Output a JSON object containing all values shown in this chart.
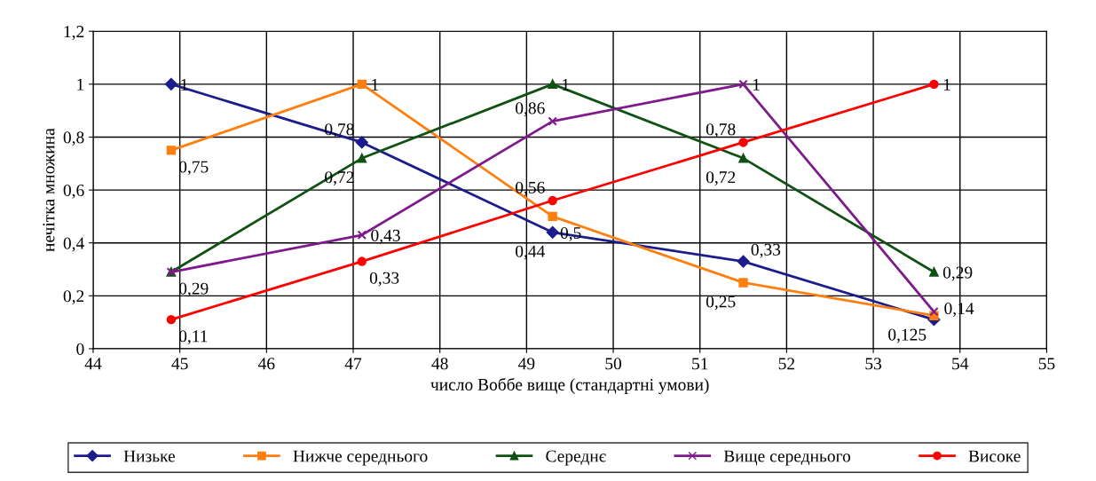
{
  "chart_data": {
    "type": "line",
    "xlabel": "число Воббе вище (стандартні умови)",
    "ylabel": "нечітка множина",
    "x": [
      44.9,
      47.1,
      49.3,
      51.5,
      53.7
    ],
    "xlim": [
      44,
      55
    ],
    "xticks": [
      44,
      45,
      46,
      47,
      48,
      49,
      50,
      51,
      52,
      53,
      54,
      55
    ],
    "ylim": [
      0,
      1.2
    ],
    "yticks": [
      0,
      {
        "value": 0.2,
        "label": "0,2"
      },
      {
        "value": 0.4,
        "label": "0,4"
      },
      {
        "value": 0.6,
        "label": "0,6"
      },
      {
        "value": 0.8,
        "label": "0,8"
      },
      1,
      {
        "value": 1.2,
        "label": "1,2"
      }
    ],
    "grid": true,
    "legend": "bottom",
    "line_style": "solid",
    "series": [
      {
        "name": "Низьке",
        "color": "#1c1c8c",
        "marker": "diamond",
        "values": [
          1,
          0.78,
          0.44,
          0.33,
          0.11
        ],
        "value_labels": [
          "1",
          "0,78",
          "0,44",
          "0,33",
          null
        ]
      },
      {
        "name": "Нижче середнього",
        "color": "#ff7f0e",
        "marker": "square",
        "values": [
          0.75,
          1,
          0.5,
          0.25,
          0.125
        ],
        "value_labels": [
          "0,75",
          "1",
          "0,5",
          "0,25",
          "0,125"
        ]
      },
      {
        "name": "Середнє",
        "color": "#0f5213",
        "marker": "triangle",
        "values": [
          0.29,
          0.72,
          1,
          0.72,
          0.29
        ],
        "value_labels": [
          null,
          "0,72",
          "1",
          "0,72",
          "0,29"
        ]
      },
      {
        "name": "Вище середнього",
        "color": "#7f1a8c",
        "marker": "cross",
        "values": [
          0.29,
          0.43,
          0.86,
          1,
          0.14
        ],
        "value_labels": [
          "0,29",
          "0,43",
          "0,86",
          "1",
          "0,14"
        ]
      },
      {
        "name": "Високе",
        "color": "#ff0000",
        "marker": "circle",
        "values": [
          0.11,
          0.33,
          0.56,
          0.78,
          1
        ],
        "value_labels": [
          "0,11",
          "0,33",
          "0,56",
          "0,78",
          "1"
        ]
      }
    ]
  }
}
